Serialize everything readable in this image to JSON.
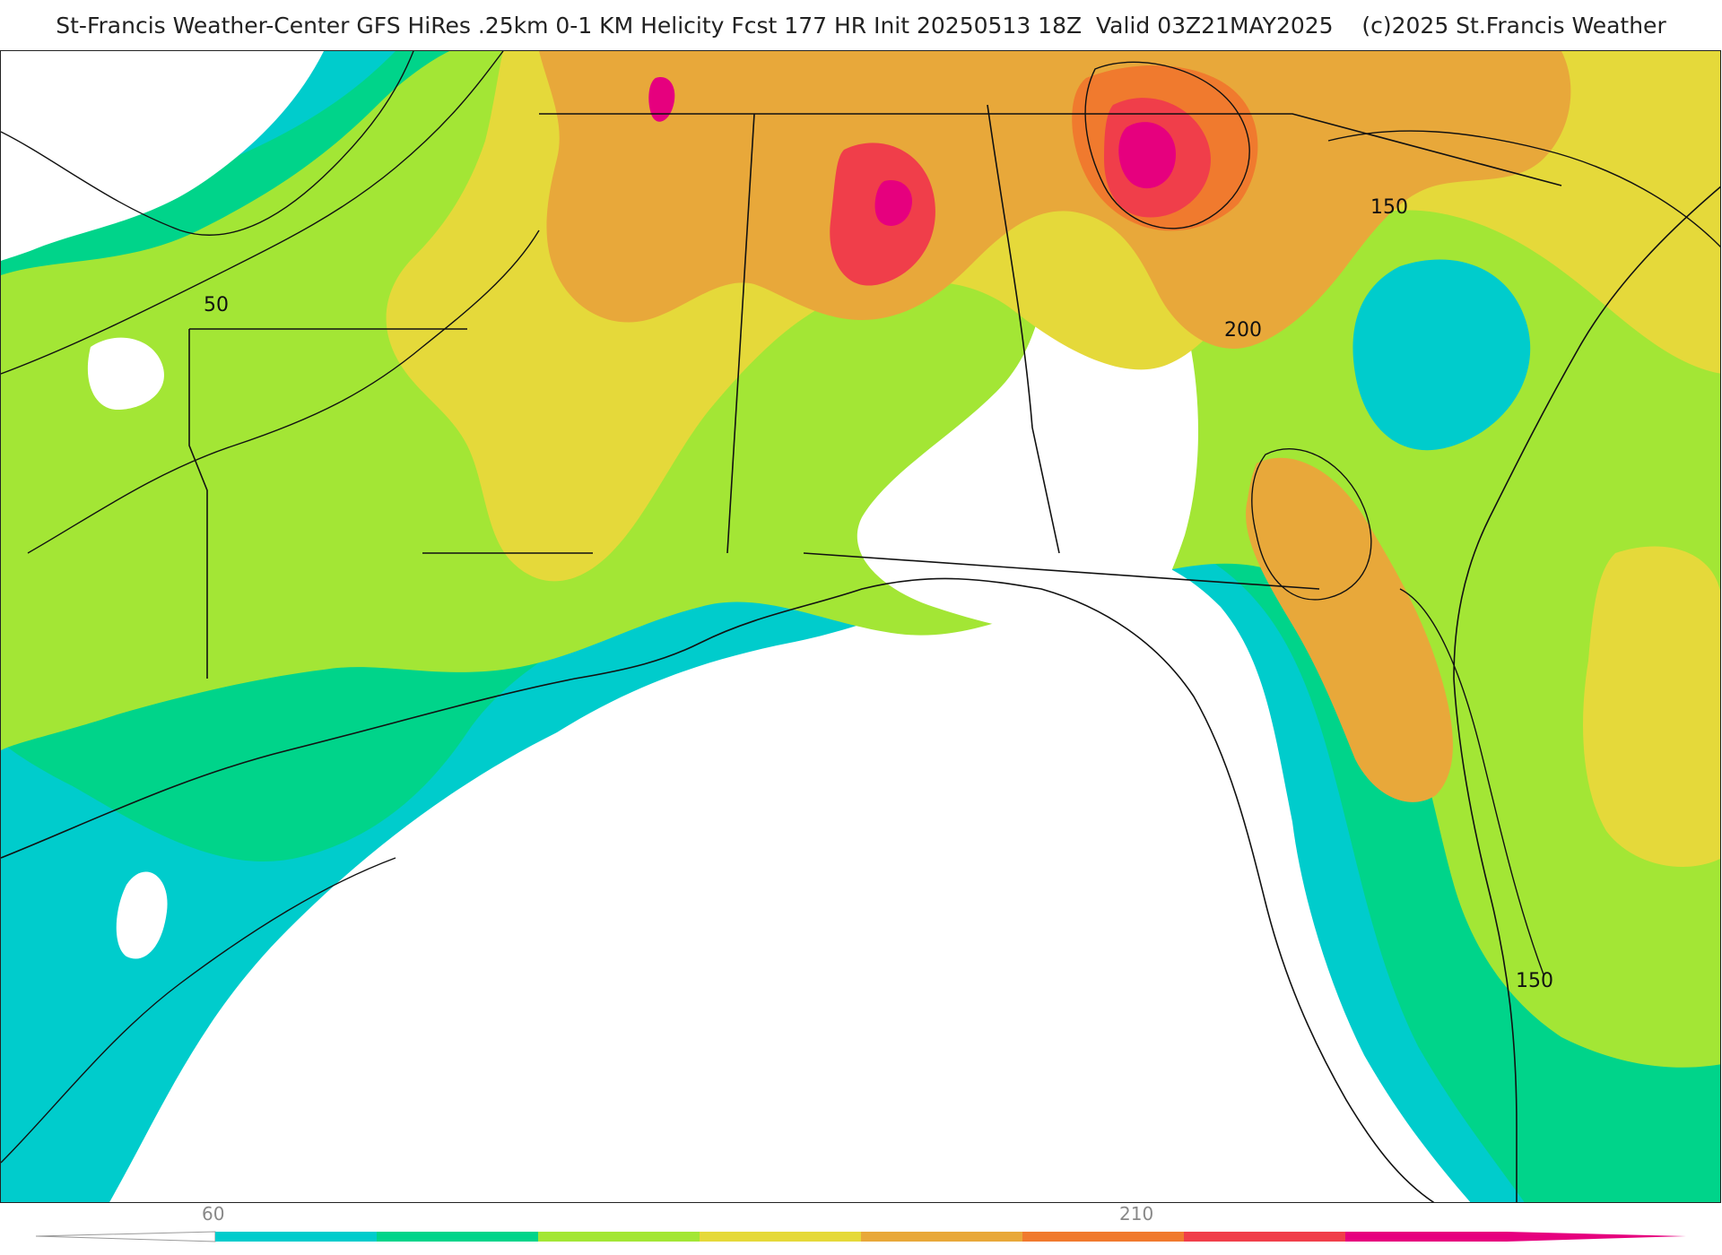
{
  "title": "St-Francis Weather-Center GFS HiRes .25km 0-1 KM Helicity Fcst 177 HR Init 20250513 18Z  Valid 03Z21MAY2025    (c)2025 St.Francis Weather",
  "contour_labels": [
    "50",
    "200",
    "150",
    "150"
  ],
  "colorbar": {
    "tick_labels": [
      "60",
      "210"
    ],
    "colors": [
      "#00cccc",
      "#00d48a",
      "#a3e635",
      "#e5d93a",
      "#e8a83a",
      "#f07a2e",
      "#f03e4a",
      "#e6007e"
    ]
  }
}
